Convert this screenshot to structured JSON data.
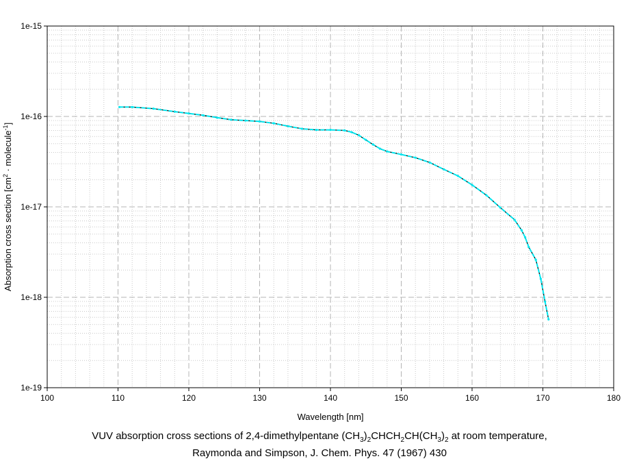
{
  "chart_data": {
    "type": "line",
    "xlabel": "Wavelength [nm]",
    "ylabel": "Absorption cross section [cm2 · molecule-1]",
    "ylabel_parts": {
      "main": "Absorption cross section [cm",
      "sup1": "2",
      "mid": " · molecule",
      "sup2": "-1",
      "end": "]"
    },
    "xlim": [
      100,
      180
    ],
    "ylim": [
      1e-19,
      1e-15
    ],
    "yscale": "log",
    "grid": true,
    "x_ticks": [
      100,
      110,
      120,
      130,
      140,
      150,
      160,
      170,
      180
    ],
    "x_tick_labels": [
      "100",
      "110",
      "120",
      "130",
      "140",
      "150",
      "160",
      "170",
      "180"
    ],
    "y_ticks": [
      1e-19,
      1e-18,
      1e-17,
      1e-16,
      1e-15
    ],
    "y_tick_labels": [
      "1e-19",
      "1e-18",
      "1e-17",
      "1e-16",
      "1e-15"
    ],
    "line_color": "#000000",
    "marker_color": "#00e5ee",
    "series": [
      {
        "x": [
          110.2,
          112,
          115,
          118,
          120,
          122,
          124,
          126,
          128,
          130,
          132,
          134,
          136,
          138,
          140,
          142,
          143,
          144,
          145,
          146,
          147,
          148,
          150,
          152,
          154,
          156,
          158,
          160,
          162,
          164,
          166,
          167,
          167.5,
          168,
          169,
          169.7,
          170.3,
          170.8
        ],
        "y": [
          1.27e-16,
          1.27e-16,
          1.22e-16,
          1.13e-16,
          1.08e-16,
          1.03e-16,
          9.7e-17,
          9.2e-17,
          9e-17,
          8.8e-17,
          8.4e-17,
          7.8e-17,
          7.3e-17,
          7.1e-17,
          7.1e-17,
          7e-17,
          6.7e-17,
          6.2e-17,
          5.5e-17,
          4.9e-17,
          4.4e-17,
          4.1e-17,
          3.8e-17,
          3.5e-17,
          3.1e-17,
          2.6e-17,
          2.2e-17,
          1.75e-17,
          1.35e-17,
          9.8e-18,
          7.2e-18,
          5.5e-18,
          4.6e-18,
          3.6e-18,
          2.6e-18,
          1.6e-18,
          9e-19,
          5.7e-19
        ]
      }
    ]
  },
  "caption": {
    "line1_parts": [
      "VUV absorption cross sections of 2,4-dimethylpentane (CH",
      "3",
      ")",
      "2",
      "CHCH",
      "2",
      "CH(CH",
      "3",
      ")",
      "2",
      " at room temperature,"
    ],
    "line2": "Raymonda and Simpson, J. Chem. Phys. 47 (1967) 430"
  }
}
